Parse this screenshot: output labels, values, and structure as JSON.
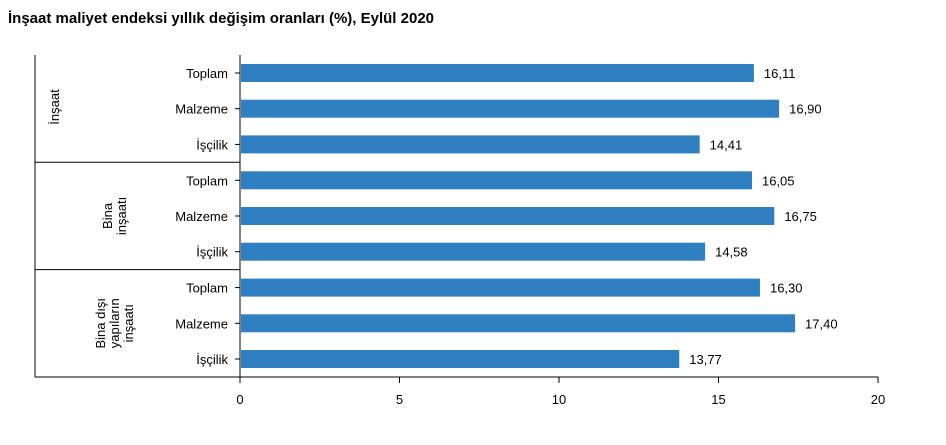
{
  "chart_data": {
    "type": "bar",
    "orientation": "horizontal",
    "title": "İnşaat maliyet endeksi yıllık değişim oranları (%), Eylül 2020",
    "xlabel": "",
    "ylabel": "",
    "xlim": [
      0,
      20
    ],
    "x_ticks": [
      "0",
      "5",
      "10",
      "15",
      "20"
    ],
    "grid": false,
    "legend": "none",
    "bar_color": "#2f7fc1",
    "groups": [
      {
        "label": [
          "İnşaat"
        ],
        "categories": [
          "Toplam",
          "Malzeme",
          "İşçilik"
        ],
        "values": [
          16.11,
          16.9,
          14.41
        ],
        "value_labels": [
          "16,11",
          "16,90",
          "14,41"
        ]
      },
      {
        "label": [
          "Bina",
          "inşaatı"
        ],
        "categories": [
          "Toplam",
          "Malzeme",
          "İşçilik"
        ],
        "values": [
          16.05,
          16.75,
          14.58
        ],
        "value_labels": [
          "16,05",
          "16,75",
          "14,58"
        ]
      },
      {
        "label": [
          "Bina dışı",
          "yapıların",
          "inşaatı"
        ],
        "categories": [
          "Toplam",
          "Malzeme",
          "İşçilik"
        ],
        "values": [
          16.3,
          17.4,
          13.77
        ],
        "value_labels": [
          "16,30",
          "17,40",
          "13,77"
        ]
      }
    ]
  }
}
